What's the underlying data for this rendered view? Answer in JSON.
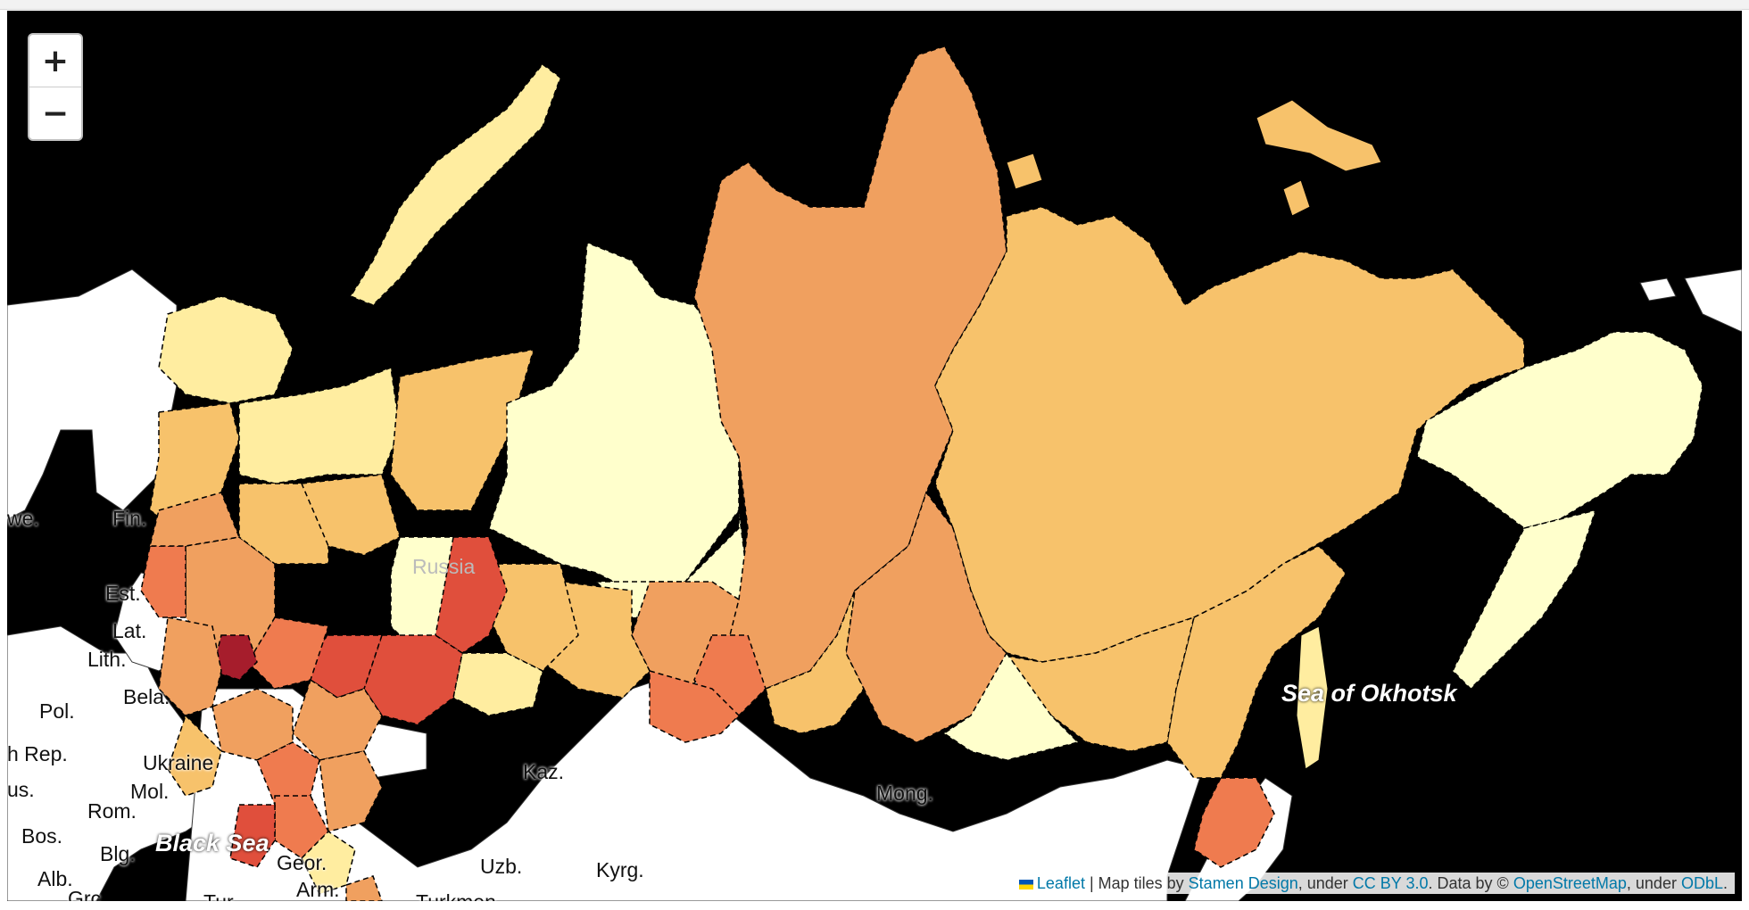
{
  "colors": {
    "water": "#000000",
    "land": "#ffffff",
    "choropleth_scale": [
      "#ffffcc",
      "#ffeda0",
      "#fed976",
      "#f7c26b",
      "#f0a05f",
      "#ef7b4f",
      "#e04f3c",
      "#a61d2c"
    ]
  },
  "zoom": {
    "in_label": "+",
    "out_label": "−"
  },
  "country_labels": {
    "swe": "we.",
    "fin": "Fin.",
    "russia": "Russia",
    "est": "Est.",
    "lat": "Lat.",
    "lith": "Lith.",
    "pol": "Pol.",
    "bela": "Bela.",
    "czech": "h Rep.",
    "ukraine": "Ukraine",
    "aus": "us.",
    "mol": "Mol.",
    "rom": "Rom.",
    "bos": "Bos.",
    "blg": "Blg.",
    "alb": "Alb.",
    "grc": "Grc.",
    "tur": "Tur.",
    "geor": "Geor.",
    "arm": "Arm.",
    "kaz": "Kaz.",
    "uzb": "Uzb.",
    "kyrg": "Kyrg.",
    "turkmen": "Turkmen.",
    "mong": "Mong."
  },
  "sea_labels": {
    "black_sea": "Black Sea",
    "okhotsk": "Sea of Okhotsk"
  },
  "attribution": {
    "leaflet": "Leaflet",
    "sep": " | Map tiles by ",
    "stamen": "Stamen Design",
    "under1": ", under ",
    "ccby": "CC BY 3.0",
    "data_by": ". Data by © ",
    "osm": "OpenStreetMap",
    "under2": ", under ",
    "odbl": "ODbL",
    "end": "."
  }
}
